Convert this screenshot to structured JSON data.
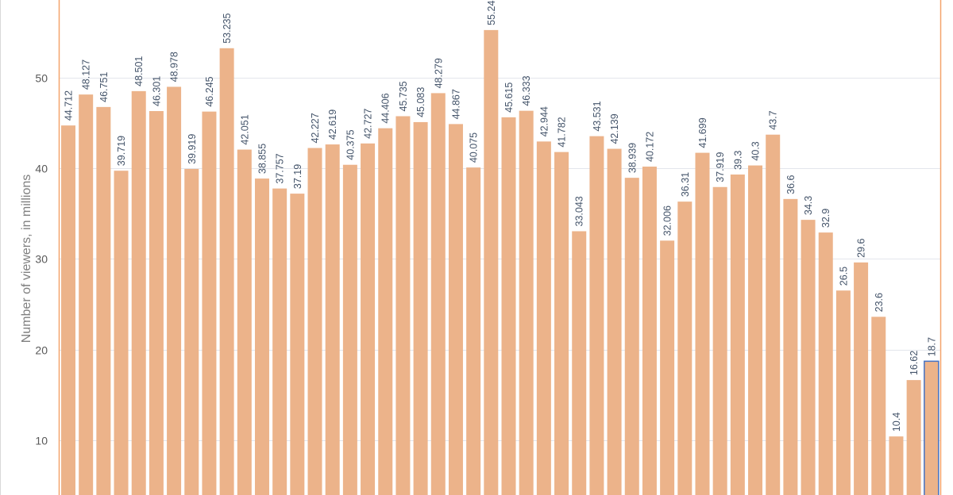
{
  "chart_data": {
    "type": "bar",
    "title": "",
    "xlabel": "",
    "ylabel": "Number of viewers, in millions",
    "ylim": [
      0,
      58.6
    ],
    "yticks": [
      10,
      20,
      30,
      40,
      50
    ],
    "grid": true,
    "bar_color": "#ecb38a",
    "selected_outline_color": "#4472c4",
    "frame_color": "#f4a36b",
    "values": [
      44.712,
      48.127,
      46.751,
      39.719,
      48.501,
      46.301,
      48.978,
      39.919,
      46.245,
      53.235,
      42.051,
      38.855,
      37.757,
      37.19,
      42.227,
      42.619,
      40.375,
      42.727,
      44.406,
      45.735,
      45.083,
      48.279,
      44.867,
      40.075,
      55.24,
      45.615,
      46.333,
      42.944,
      41.782,
      33.043,
      43.531,
      42.139,
      38.939,
      40.172,
      32.006,
      36.31,
      41.699,
      37.919,
      39.3,
      40.3,
      43.7,
      36.6,
      34.3,
      32.9,
      26.5,
      29.6,
      23.6,
      10.4,
      16.62,
      18.7
    ],
    "data_labels": [
      "44.712",
      "48.127",
      "46.751",
      "39.719",
      "48.501",
      "46.301",
      "48.978",
      "39.919",
      "46.245",
      "53.235",
      "42.051",
      "38.855",
      "37.757",
      "37.19",
      "42.227",
      "42.619",
      "40.375",
      "42.727",
      "44.406",
      "45.735",
      "45.083",
      "48.279",
      "44.867",
      "40.075",
      "55.24",
      "45.615",
      "46.333",
      "42.944",
      "41.782",
      "33.043",
      "43.531",
      "42.139",
      "38.939",
      "40.172",
      "32.006",
      "36.31",
      "41.699",
      "37.919",
      "39.3",
      "40.3",
      "43.7",
      "36.6",
      "34.3",
      "32.9",
      "26.5",
      "29.6",
      "23.6",
      "10.4",
      "16.62",
      "18.7"
    ],
    "selected_index": 49
  }
}
